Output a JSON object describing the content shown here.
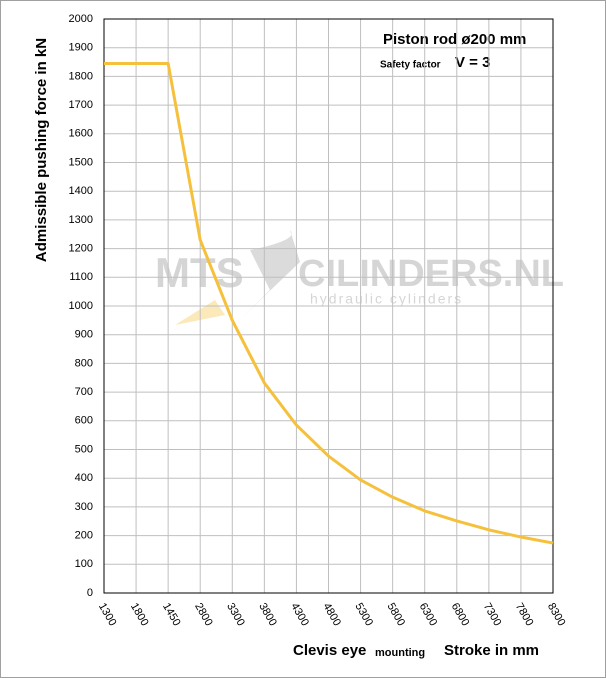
{
  "chart_data": {
    "type": "line",
    "title": "Piston rod ø200 mm",
    "safety_factor_label": "Safety factor",
    "safety_factor_value": "V = 3",
    "xlabel": "Clevis eye",
    "xlabel_note": "mounting",
    "xlabel_units": "Stroke in mm",
    "ylabel": "Admissible pushing  force in kN",
    "watermark_left": "MTS",
    "watermark_right": "CILINDERS.NL",
    "watermark_subtitle": "hydraulic cylinders",
    "categories": [
      "1300",
      "1800",
      "1450",
      "2800",
      "3300",
      "3800",
      "4300",
      "4800",
      "5300",
      "5800",
      "6300",
      "6800",
      "7300",
      "7800",
      "8300"
    ],
    "values": [
      1845,
      1845,
      1845,
      1230,
      950,
      732,
      585,
      477,
      394,
      334,
      286,
      251,
      220,
      195,
      174
    ],
    "color": "#f5c13c",
    "ylim": [
      0,
      2000
    ],
    "yticks": [
      0,
      100,
      200,
      300,
      400,
      500,
      600,
      700,
      800,
      900,
      1000,
      1100,
      1200,
      1300,
      1400,
      1500,
      1600,
      1700,
      1800,
      1900,
      2000
    ],
    "grid": true
  }
}
